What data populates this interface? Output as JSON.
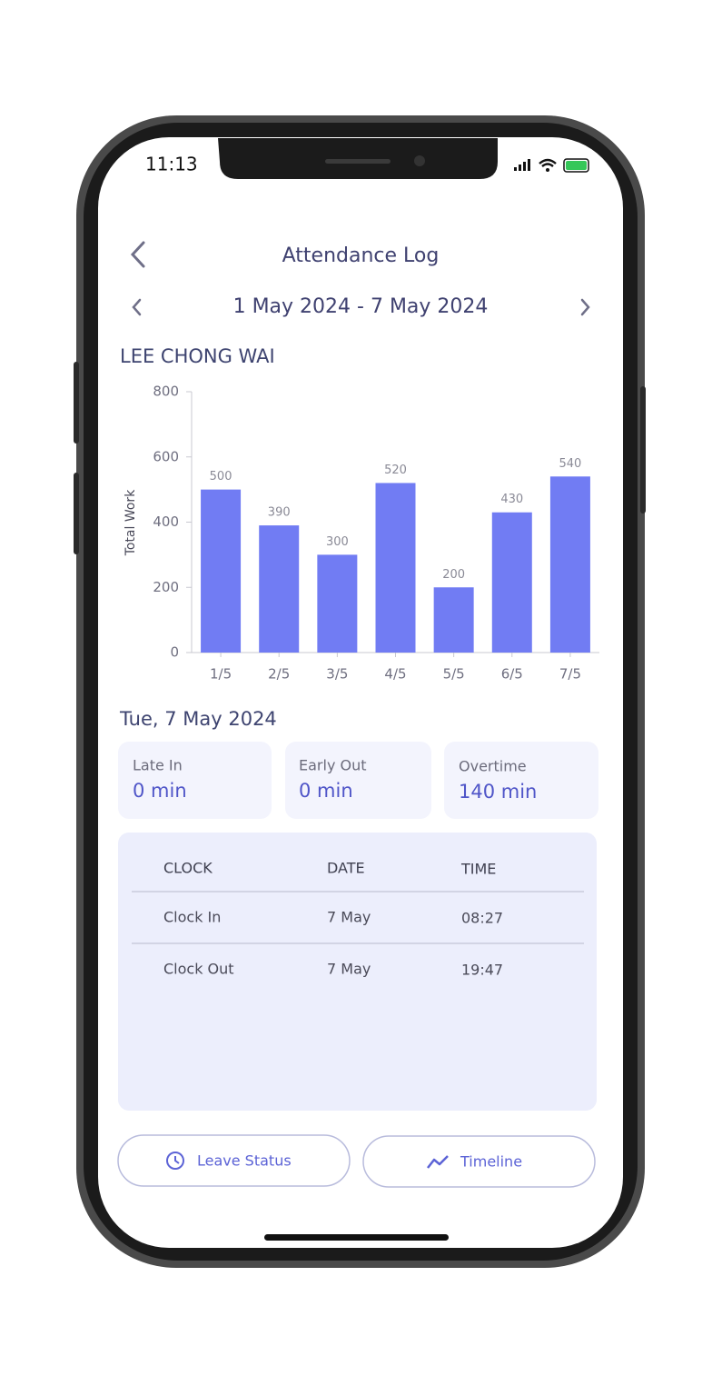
{
  "status_bar": {
    "time": "11:13"
  },
  "header": {
    "title": "Attendance Log",
    "date_range": "1 May 2024 - 7 May 2024"
  },
  "employee": "LEE CHONG WAI",
  "chart_data": {
    "type": "bar",
    "y_label": "Total Work",
    "categories": [
      "1/5",
      "2/5",
      "3/5",
      "4/5",
      "5/5",
      "6/5",
      "7/5"
    ],
    "values": [
      500,
      390,
      300,
      520,
      200,
      430,
      540
    ],
    "color": "#717cf3",
    "ylim": [
      0,
      800
    ],
    "yticks": [
      0,
      200,
      400,
      600,
      800
    ]
  },
  "day": {
    "title": "Tue, 7 May 2024",
    "stats": [
      {
        "label": "Late In",
        "value": "0 min"
      },
      {
        "label": "Early Out",
        "value": "0 min"
      },
      {
        "label": "Overtime",
        "value": "140 min"
      }
    ]
  },
  "table": {
    "headers": [
      "CLOCK",
      "DATE",
      "TIME"
    ],
    "rows": [
      [
        "Clock In",
        "7 May",
        "08:27"
      ],
      [
        "Clock Out",
        "7 May",
        "19:47"
      ]
    ]
  },
  "buttons": [
    {
      "label": "Leave Status"
    },
    {
      "label": "Timeline"
    }
  ]
}
